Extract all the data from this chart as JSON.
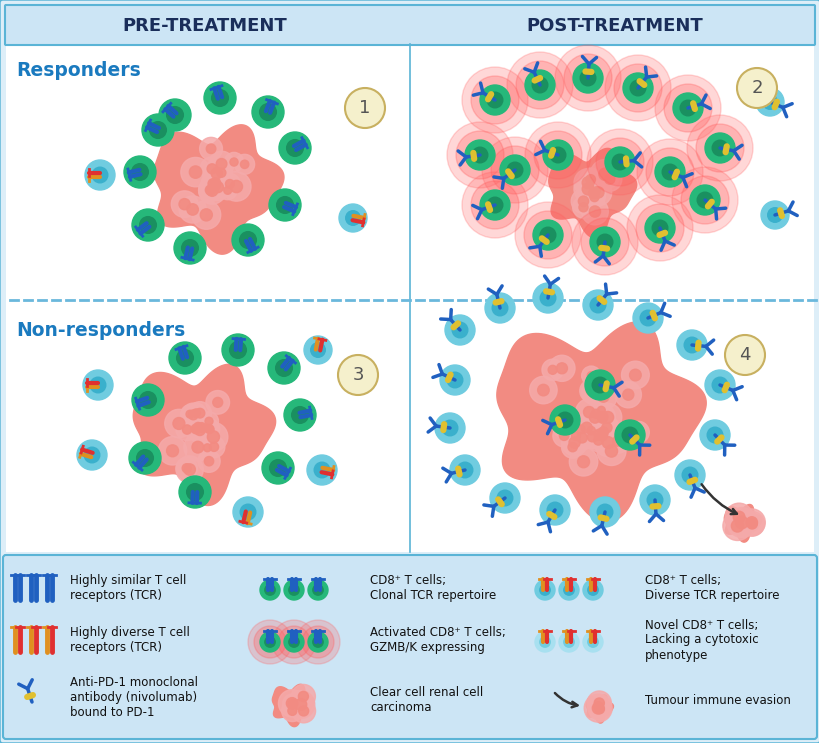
{
  "bg_color": "#ddeef8",
  "panel_bg": "#ffffff",
  "header_bg": "#cce5f5",
  "legend_bg": "#cce5f5",
  "border_color": "#5ab4d6",
  "dashed_color": "#6ab8dc",
  "pre_treatment_label": "PRE-TREATMENT",
  "post_treatment_label": "POST-TREATMENT",
  "responders_label": "Responders",
  "non_responders_label": "Non-responders",
  "header_text_color": "#1a2e5a",
  "responders_text_color": "#1a7abf",
  "tumor_color": "#f28b82",
  "tumor_inner_color": "#f5aaaa",
  "tumor_cell_color": "#f09090",
  "cd8_green_outer": "#26b87a",
  "cd8_green_inner": "#1a9060",
  "cd8_blue_outer": "#70cce0",
  "cd8_blue_inner": "#3ab0cc",
  "cd8_novel_outer": "#a8e0f0",
  "cd8_novel_inner": "#70cce0",
  "glow_color": "#ff6060",
  "tcr_blue": "#2060c0",
  "tcr_orange": "#e09020",
  "tcr_red": "#e03030",
  "ab_blue": "#2060c0",
  "ab_yellow": "#e0c030",
  "num_circle_bg": "#f5f0cc",
  "num_circle_border": "#c8b060",
  "num_text_color": "#555555",
  "figsize": [
    8.2,
    7.43
  ],
  "dpi": 100
}
